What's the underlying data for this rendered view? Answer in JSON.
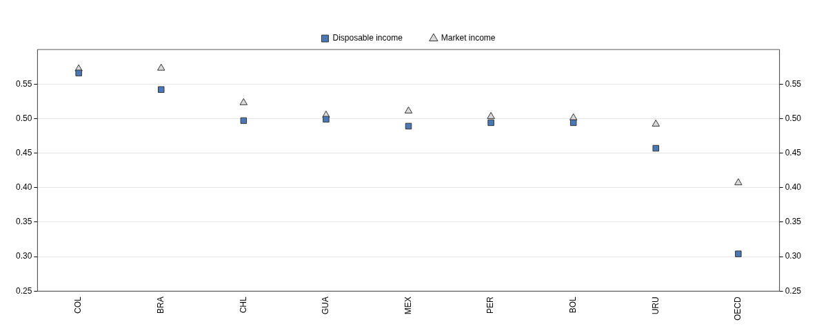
{
  "chart_data": {
    "type": "scatter",
    "categories": [
      "COL",
      "BRA",
      "CHL",
      "GUA",
      "MEX",
      "PER",
      "BOL",
      "URU",
      "OECD"
    ],
    "series": [
      {
        "name": "Disposable income",
        "color": "#4a78b5",
        "marker": "square",
        "values": [
          0.566,
          0.542,
          0.497,
          0.499,
          0.489,
          0.494,
          0.494,
          0.457,
          0.304
        ]
      },
      {
        "name": "Market income",
        "color": "#d9d9d9",
        "marker": "triangle",
        "values": [
          0.572,
          0.573,
          0.523,
          0.505,
          0.511,
          0.503,
          0.501,
          0.492,
          0.407
        ]
      }
    ],
    "ylim": [
      0.25,
      0.6
    ],
    "yticks": [
      {
        "value": 0.25,
        "label": "0.25"
      },
      {
        "value": 0.3,
        "label": "0.30"
      },
      {
        "value": 0.35,
        "label": "0.35"
      },
      {
        "value": 0.4,
        "label": "0.40"
      },
      {
        "value": 0.45,
        "label": "0.45"
      },
      {
        "value": 0.5,
        "label": "0.50"
      },
      {
        "value": 0.55,
        "label": "0.55"
      }
    ],
    "y2lim": [
      0.25,
      0.6
    ],
    "y2ticks": [
      {
        "value": 0.25,
        "label": "0.25"
      },
      {
        "value": 0.3,
        "label": "0.30"
      },
      {
        "value": 0.35,
        "label": "0.35"
      },
      {
        "value": 0.4,
        "label": "0.40"
      },
      {
        "value": 0.45,
        "label": "0.45"
      },
      {
        "value": 0.5,
        "label": "0.50"
      },
      {
        "value": 0.55,
        "label": "0.55"
      }
    ],
    "grid": "y",
    "legend": "top"
  }
}
